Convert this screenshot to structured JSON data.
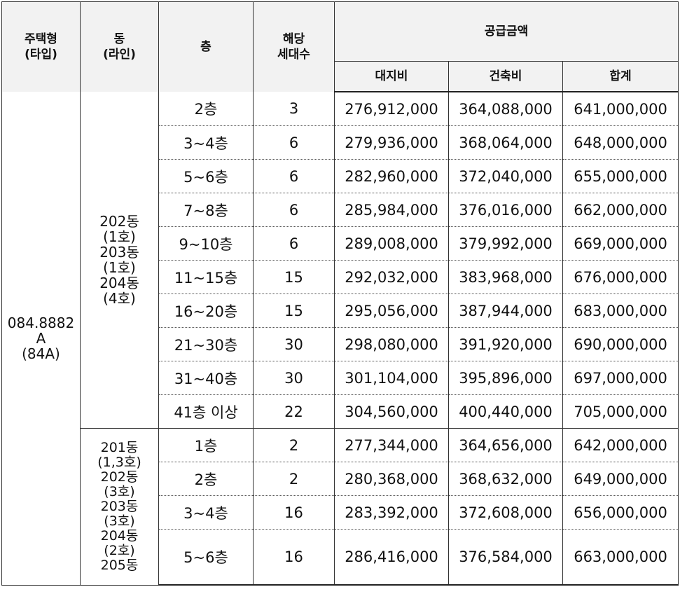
{
  "headers": {
    "housing_type": "주택형\n(타입)",
    "building": "동\n(라인)",
    "floor": "층",
    "households": "해당\n세대수",
    "supply_price": "공급금액",
    "land": "대지비",
    "construction": "건축비",
    "total": "합계"
  },
  "housing_type": "084.8882\nA\n(84A)",
  "groups": [
    {
      "building": "202동\n(1호)\n203동\n(1호)\n204동\n(4호)"
    },
    {
      "building": "201동\n(1,3호)\n202동\n(3호)\n203동\n(3호)\n204동\n(2호)\n205동"
    }
  ],
  "rows": [
    {
      "floor": "2층",
      "households": "3",
      "land": "276,912,000",
      "construction": "364,088,000",
      "total": "641,000,000"
    },
    {
      "floor": "3~4층",
      "households": "6",
      "land": "279,936,000",
      "construction": "368,064,000",
      "total": "648,000,000"
    },
    {
      "floor": "5~6층",
      "households": "6",
      "land": "282,960,000",
      "construction": "372,040,000",
      "total": "655,000,000"
    },
    {
      "floor": "7~8층",
      "households": "6",
      "land": "285,984,000",
      "construction": "376,016,000",
      "total": "662,000,000"
    },
    {
      "floor": "9~10층",
      "households": "6",
      "land": "289,008,000",
      "construction": "379,992,000",
      "total": "669,000,000"
    },
    {
      "floor": "11~15층",
      "households": "15",
      "land": "292,032,000",
      "construction": "383,968,000",
      "total": "676,000,000"
    },
    {
      "floor": "16~20층",
      "households": "15",
      "land": "295,056,000",
      "construction": "387,944,000",
      "total": "683,000,000"
    },
    {
      "floor": "21~30층",
      "households": "30",
      "land": "298,080,000",
      "construction": "391,920,000",
      "total": "690,000,000"
    },
    {
      "floor": "31~40층",
      "households": "30",
      "land": "301,104,000",
      "construction": "395,896,000",
      "total": "697,000,000"
    },
    {
      "floor": "41층 이상",
      "households": "22",
      "land": "304,560,000",
      "construction": "400,440,000",
      "total": "705,000,000"
    },
    {
      "floor": "1층",
      "households": "2",
      "land": "277,344,000",
      "construction": "364,656,000",
      "total": "642,000,000"
    },
    {
      "floor": "2층",
      "households": "2",
      "land": "280,368,000",
      "construction": "368,632,000",
      "total": "649,000,000"
    },
    {
      "floor": "3~4층",
      "households": "16",
      "land": "283,392,000",
      "construction": "372,608,000",
      "total": "656,000,000"
    },
    {
      "floor": "5~6층",
      "households": "16",
      "land": "286,416,000",
      "construction": "376,584,000",
      "total": "663,000,000"
    }
  ]
}
